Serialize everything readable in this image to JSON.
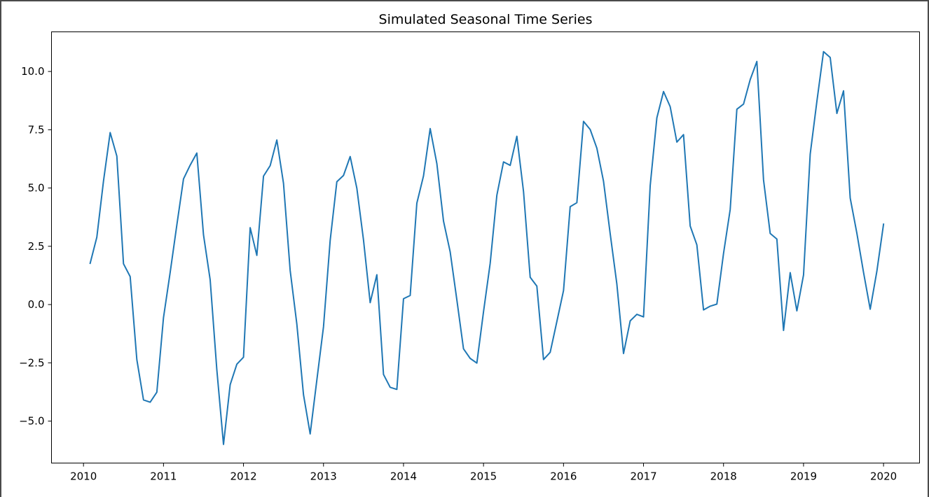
{
  "chart_data": {
    "type": "line",
    "title": "Simulated Seasonal Time Series",
    "xlabel": "",
    "ylabel": "",
    "grid": false,
    "xlim": [
      2009.6,
      2020.45
    ],
    "ylim": [
      -6.8,
      11.7
    ],
    "x_ticks": [
      {
        "value": 2010,
        "label": "2010"
      },
      {
        "value": 2011,
        "label": "2011"
      },
      {
        "value": 2012,
        "label": "2012"
      },
      {
        "value": 2013,
        "label": "2013"
      },
      {
        "value": 2014,
        "label": "2014"
      },
      {
        "value": 2015,
        "label": "2015"
      },
      {
        "value": 2016,
        "label": "2016"
      },
      {
        "value": 2017,
        "label": "2017"
      },
      {
        "value": 2018,
        "label": "2018"
      },
      {
        "value": 2019,
        "label": "2019"
      },
      {
        "value": 2020,
        "label": "2020"
      }
    ],
    "y_ticks": [
      {
        "value": 10.0,
        "label": "10.0"
      },
      {
        "value": 7.5,
        "label": "7.5"
      },
      {
        "value": 5.0,
        "label": "5.0"
      },
      {
        "value": 2.5,
        "label": "2.5"
      },
      {
        "value": 0.0,
        "label": "0.0"
      },
      {
        "value": -2.5,
        "label": "−2.5"
      },
      {
        "value": -5.0,
        "label": "−5.0"
      }
    ],
    "series": [
      {
        "name": "series",
        "color": "#1f77b4",
        "start": 2010.083333,
        "step": 0.083333,
        "values": [
          1.77,
          2.89,
          5.3,
          7.38,
          6.37,
          1.75,
          1.2,
          -2.36,
          -4.09,
          -4.19,
          -3.76,
          -0.56,
          1.38,
          3.41,
          5.39,
          5.98,
          6.5,
          2.99,
          1.06,
          -2.8,
          -6.0,
          -3.44,
          -2.56,
          -2.26,
          3.3,
          2.11,
          5.51,
          5.96,
          7.06,
          5.2,
          1.46,
          -0.84,
          -3.87,
          -5.55,
          -3.24,
          -0.95,
          2.75,
          5.27,
          5.54,
          6.35,
          4.99,
          2.77,
          0.08,
          1.28,
          -3.0,
          -3.55,
          -3.64,
          0.25,
          0.39,
          4.35,
          5.52,
          7.55,
          6.05,
          3.58,
          2.26,
          0.2,
          -1.9,
          -2.31,
          -2.51,
          -0.31,
          1.77,
          4.69,
          6.12,
          5.97,
          7.22,
          4.85,
          1.17,
          0.79,
          -2.36,
          -2.05,
          -0.73,
          0.6,
          4.2,
          4.37,
          7.86,
          7.51,
          6.71,
          5.29,
          3.04,
          0.88,
          -2.1,
          -0.7,
          -0.42,
          -0.53,
          5.1,
          8.01,
          9.14,
          8.49,
          6.97,
          7.29,
          3.37,
          2.56,
          -0.23,
          -0.07,
          0.02,
          2.19,
          4.08,
          8.38,
          8.6,
          9.65,
          10.43,
          5.35,
          3.05,
          2.81,
          -1.11,
          1.37,
          -0.27,
          1.27,
          6.45,
          8.71,
          10.85,
          10.6,
          8.2,
          9.17,
          4.57,
          3.06,
          1.38,
          -0.2,
          1.43,
          3.45
        ]
      }
    ]
  }
}
